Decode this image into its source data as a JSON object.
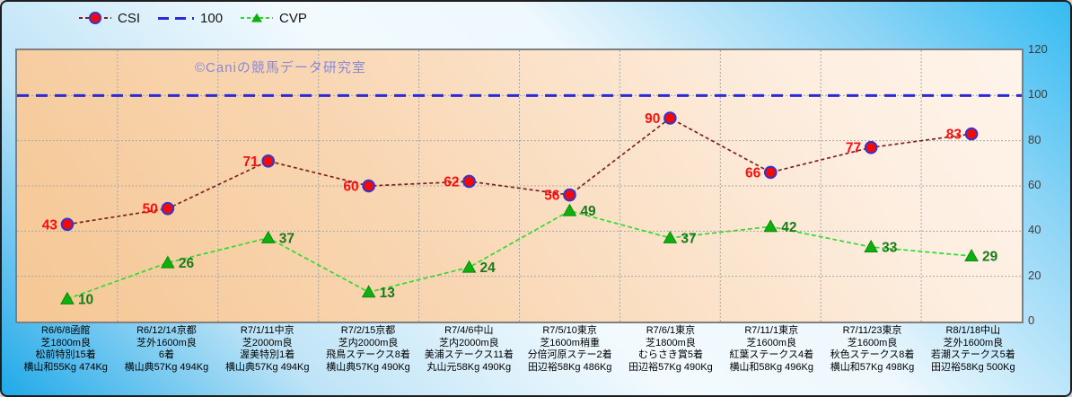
{
  "watermark": "©Caniの競馬データ研究室",
  "chart_data": {
    "type": "line",
    "title": "",
    "legend_position": "top",
    "grid": true,
    "grid_color": "#a8a8a8",
    "y_axis": {
      "side": "right",
      "min": 0,
      "max": 120,
      "step": 20,
      "ticks": [
        0,
        20,
        40,
        60,
        80,
        100,
        120
      ]
    },
    "categories": [
      [
        "R6/6/8函館",
        "芝1800m良",
        "松前特別15着",
        "横山和55Kg 474Kg"
      ],
      [
        "R6/12/14京都",
        "芝外1600m良",
        "6着",
        "横山典57Kg 494Kg"
      ],
      [
        "R7/1/11中京",
        "芝2000m良",
        "渥美特別1着",
        "横山典57Kg 494Kg"
      ],
      [
        "R7/2/15京都",
        "芝内2000m良",
        "飛鳥ステークス8着",
        "横山典57Kg 490Kg"
      ],
      [
        "R7/4/6中山",
        "芝内2000m良",
        "美浦ステークス11着",
        "丸山元58Kg 490Kg"
      ],
      [
        "R7/5/10東京",
        "芝1600m稍重",
        "分倍河原ステー2着",
        "田辺裕58Kg 486Kg"
      ],
      [
        "R7/6/1東京",
        "芝1800m良",
        "むらさき賞5着",
        "田辺裕57Kg 490Kg"
      ],
      [
        "R7/11/1東京",
        "芝1600m良",
        "紅葉ステークス4着",
        "横山和58Kg 496Kg"
      ],
      [
        "R7/11/23東京",
        "芝1600m良",
        "秋色ステークス8着",
        "横山和57Kg 498Kg"
      ],
      [
        "R8/1/18中山",
        "芝外1600m良",
        "若潮ステークス5着",
        "田辺裕58Kg 500Kg"
      ]
    ],
    "series": [
      {
        "name": "CSI",
        "kind": "line",
        "values": [
          43,
          50,
          71,
          60,
          62,
          56,
          90,
          66,
          77,
          83
        ],
        "line_color": "#7e2020",
        "line_dash": "4 3",
        "marker": "circle",
        "marker_fill": "#f00a0a",
        "marker_stroke": "#3535ce",
        "label_color": "#fb0f0f",
        "label_side": "left"
      },
      {
        "name": "100",
        "kind": "constant",
        "value": 100,
        "line_color": "#2a2ad8",
        "line_dash": "13 8"
      },
      {
        "name": "CVP",
        "kind": "line",
        "values": [
          10,
          26,
          37,
          13,
          24,
          49,
          37,
          42,
          33,
          29
        ],
        "line_color": "#2edb2e",
        "line_dash": "5 3",
        "marker": "triangle",
        "marker_fill": "#0faf0f",
        "marker_stroke": "#0a8a0a",
        "label_color": "#1a7a1a",
        "label_side": "right"
      }
    ]
  }
}
